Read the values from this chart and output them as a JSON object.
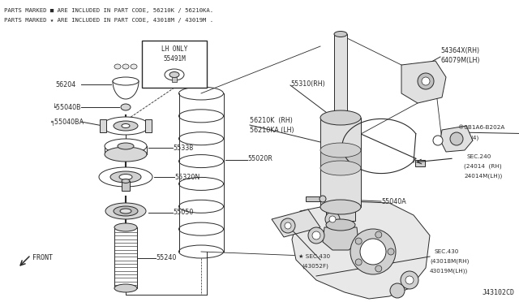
{
  "bg_color": "#ffffff",
  "line_color": "#2a2a2a",
  "text_color": "#2a2a2a",
  "title_line1": "PARTS MARKED ■ ARE INCLUDED IN PART CODE, 56210K / 56210KA.",
  "title_line2": "PARTS MARKED ★ ARE INCLUDED IN PART CODE, 43018M / 43019M .",
  "diagram_code": "J43102CD",
  "front_label": "FRONT"
}
